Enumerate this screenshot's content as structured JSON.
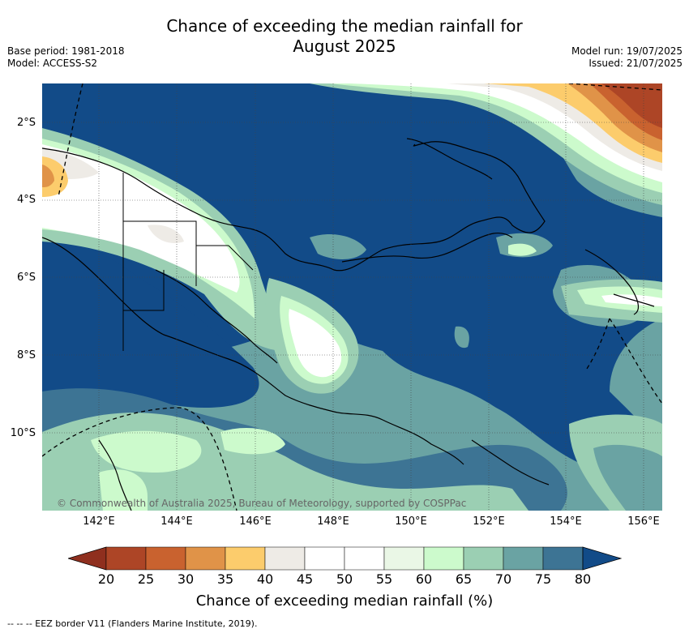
{
  "title_line1": "Chance of exceeding the median rainfall for",
  "title_line2": "August 2025",
  "meta_left": [
    "Base period: 1981-2018",
    "Model: ACCESS-S2"
  ],
  "meta_right": [
    "Model run: 19/07/2025",
    "Issued: 21/07/2025"
  ],
  "lat_labels": [
    "2°S",
    "4°S",
    "6°S",
    "8°S",
    "10°S"
  ],
  "lon_labels": [
    "142°E",
    "144°E",
    "146°E",
    "148°E",
    "150°E",
    "152°E",
    "154°E",
    "156°E"
  ],
  "copyright": "© Commonwealth of Australia 2025, Bureau of Meteorology, supported by COSPPac",
  "colorbar": {
    "ticks": [
      "20",
      "25",
      "30",
      "35",
      "40",
      "45",
      "50",
      "55",
      "60",
      "65",
      "70",
      "75",
      "80"
    ],
    "colors": [
      "#8f2f1e",
      "#ad4526",
      "#c9622f",
      "#e09348",
      "#fccc6c",
      "#eeebe6",
      "#ffffff",
      "#ffffff",
      "#eaf7e6",
      "#ccfacc",
      "#9bcfb3",
      "#6aa3a3",
      "#3d7494",
      "#124b88"
    ],
    "label": "Chance of exceeding median rainfall (%)"
  },
  "footer": "-- -- -- EEZ border V11 (Flanders Marine Institute, 2019)."
}
